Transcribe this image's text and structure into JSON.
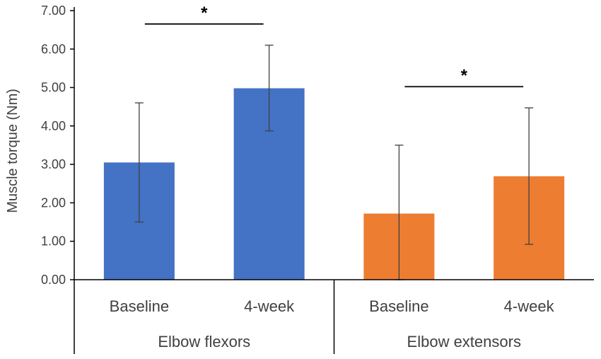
{
  "chart_data": {
    "type": "bar",
    "ylabel": "Muscle torque (Nm)",
    "ylim": [
      0,
      7
    ],
    "ytick_step": 1,
    "yticks": [
      "0.00",
      "1.00",
      "2.00",
      "3.00",
      "4.00",
      "5.00",
      "6.00",
      "7.00"
    ],
    "groups": [
      {
        "name": "Elbow flexors",
        "color": "#4472C4",
        "bars": [
          {
            "label": "Baseline",
            "value": 3.05,
            "err_low": 1.5,
            "err_high": 4.6
          },
          {
            "label": "4-week",
            "value": 4.98,
            "err_low": 3.87,
            "err_high": 6.1
          }
        ],
        "significance": "*"
      },
      {
        "name": "Elbow extensors",
        "color": "#ED7D31",
        "bars": [
          {
            "label": "Baseline",
            "value": 1.72,
            "err_low": 0,
            "err_high": 3.5
          },
          {
            "label": "4-week",
            "value": 2.69,
            "err_low": 0.92,
            "err_high": 4.47
          }
        ],
        "significance": "*"
      }
    ]
  }
}
